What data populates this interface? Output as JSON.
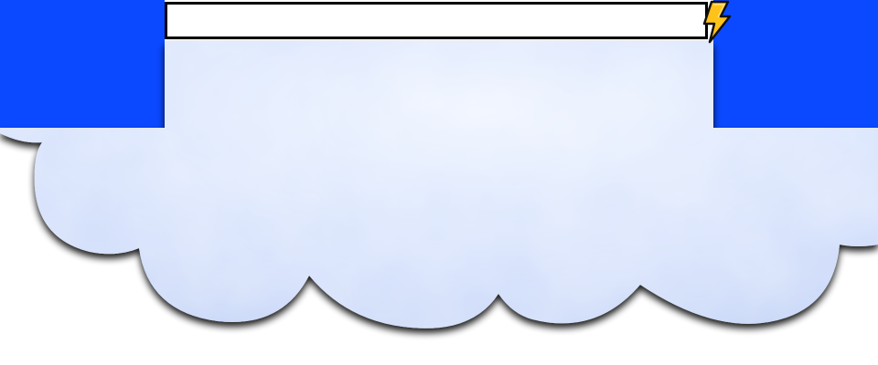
{
  "header": {
    "search": {
      "value": "",
      "placeholder": ""
    },
    "action_icon": "lightning-bolt-icon"
  },
  "colors": {
    "band_blue": "#0a49ff",
    "cloud_light": "#e6eeff",
    "cloud_mid": "#c8d8fa",
    "cloud_shadow": "#333333",
    "bolt_fill": "#ffc21a",
    "bolt_stroke": "#111111"
  }
}
